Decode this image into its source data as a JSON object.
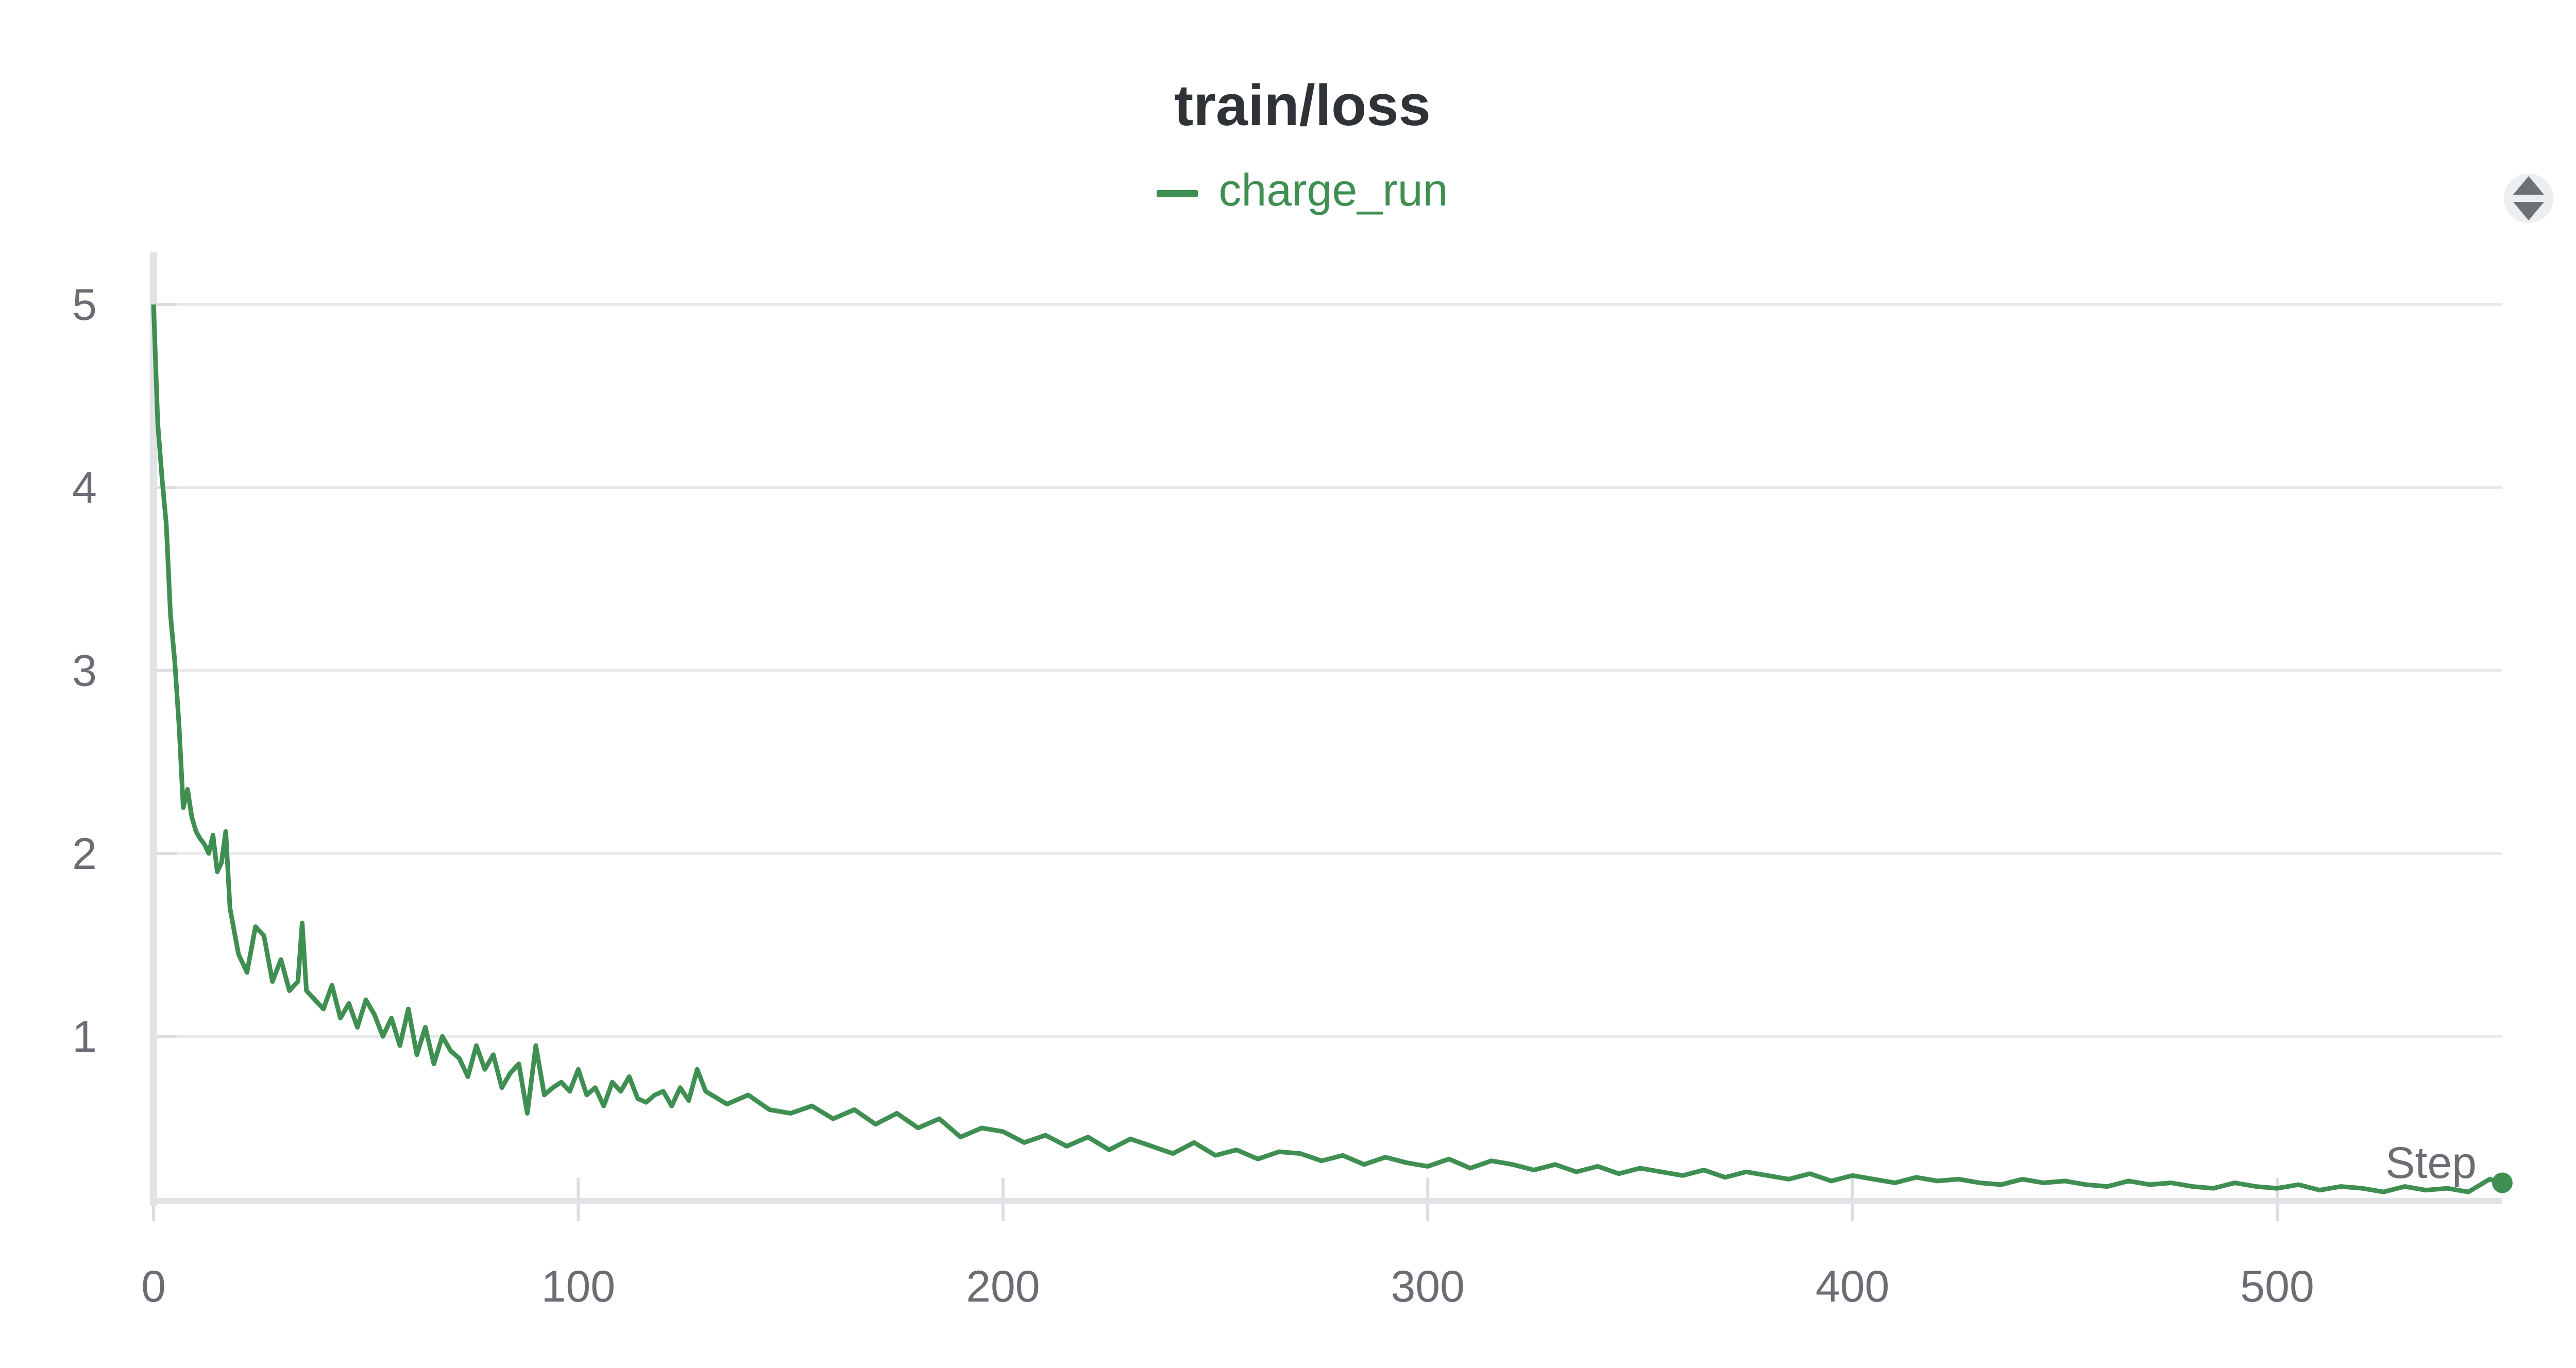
{
  "chart_data": {
    "type": "line",
    "title": "train/loss",
    "xlabel": "Step",
    "ylabel": "",
    "xlim": [
      0,
      553
    ],
    "ylim": [
      0.1,
      5.2
    ],
    "x_ticks": [
      0,
      100,
      200,
      300,
      400,
      500
    ],
    "y_ticks": [
      1,
      2,
      3,
      4,
      5
    ],
    "grid": "horizontal",
    "legend_position": "top-center",
    "series": [
      {
        "name": "charge_run",
        "color": "#3f8f52",
        "x": [
          0,
          1,
          2,
          3,
          4,
          5,
          6,
          7,
          8,
          9,
          10,
          11,
          12,
          13,
          14,
          15,
          16,
          17,
          18,
          20,
          22,
          24,
          26,
          28,
          30,
          32,
          34,
          35,
          36,
          38,
          40,
          42,
          44,
          46,
          48,
          50,
          52,
          54,
          56,
          58,
          60,
          62,
          64,
          66,
          68,
          70,
          72,
          74,
          76,
          78,
          80,
          82,
          84,
          86,
          88,
          90,
          92,
          94,
          96,
          98,
          100,
          102,
          104,
          106,
          108,
          110,
          112,
          114,
          116,
          118,
          120,
          122,
          124,
          126,
          128,
          130,
          135,
          140,
          145,
          150,
          155,
          160,
          165,
          170,
          175,
          180,
          185,
          190,
          195,
          200,
          205,
          210,
          215,
          220,
          225,
          230,
          235,
          240,
          245,
          250,
          255,
          260,
          265,
          270,
          275,
          280,
          285,
          290,
          295,
          300,
          305,
          310,
          315,
          320,
          325,
          330,
          335,
          340,
          345,
          350,
          355,
          360,
          365,
          370,
          375,
          380,
          385,
          390,
          395,
          400,
          405,
          410,
          415,
          420,
          425,
          430,
          435,
          440,
          445,
          450,
          455,
          460,
          465,
          470,
          475,
          480,
          485,
          490,
          495,
          500,
          505,
          510,
          515,
          520,
          525,
          530,
          535,
          540,
          545,
          550,
          553
        ],
        "y": [
          5.0,
          4.35,
          4.05,
          3.8,
          3.3,
          3.05,
          2.7,
          2.25,
          2.35,
          2.2,
          2.12,
          2.08,
          2.05,
          2.0,
          2.1,
          1.9,
          1.95,
          2.12,
          1.7,
          1.45,
          1.35,
          1.6,
          1.55,
          1.3,
          1.42,
          1.25,
          1.3,
          1.62,
          1.25,
          1.2,
          1.15,
          1.28,
          1.1,
          1.18,
          1.05,
          1.2,
          1.12,
          1.0,
          1.1,
          0.95,
          1.15,
          0.9,
          1.05,
          0.85,
          1.0,
          0.92,
          0.88,
          0.78,
          0.95,
          0.82,
          0.9,
          0.72,
          0.8,
          0.85,
          0.58,
          0.95,
          0.68,
          0.72,
          0.75,
          0.7,
          0.82,
          0.68,
          0.72,
          0.62,
          0.75,
          0.7,
          0.78,
          0.66,
          0.64,
          0.68,
          0.7,
          0.62,
          0.72,
          0.65,
          0.82,
          0.7,
          0.63,
          0.68,
          0.6,
          0.58,
          0.62,
          0.55,
          0.6,
          0.52,
          0.58,
          0.5,
          0.55,
          0.45,
          0.5,
          0.48,
          0.42,
          0.46,
          0.4,
          0.45,
          0.38,
          0.44,
          0.4,
          0.36,
          0.42,
          0.35,
          0.38,
          0.33,
          0.37,
          0.36,
          0.32,
          0.35,
          0.3,
          0.34,
          0.31,
          0.29,
          0.33,
          0.28,
          0.32,
          0.3,
          0.27,
          0.3,
          0.26,
          0.29,
          0.25,
          0.28,
          0.26,
          0.24,
          0.27,
          0.23,
          0.26,
          0.24,
          0.22,
          0.25,
          0.21,
          0.24,
          0.22,
          0.2,
          0.23,
          0.21,
          0.22,
          0.2,
          0.19,
          0.22,
          0.2,
          0.21,
          0.19,
          0.18,
          0.21,
          0.19,
          0.2,
          0.18,
          0.17,
          0.2,
          0.18,
          0.17,
          0.19,
          0.16,
          0.18,
          0.17,
          0.15,
          0.18,
          0.16,
          0.17,
          0.15,
          0.22,
          0.2
        ]
      }
    ]
  },
  "ui": {
    "menu_icon": "drag-handle-icon"
  }
}
